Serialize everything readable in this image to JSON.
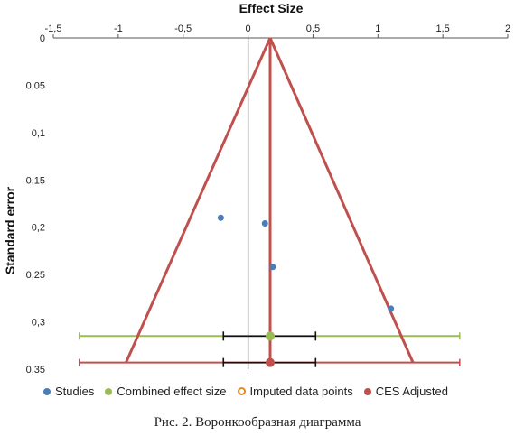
{
  "chart_data": {
    "type": "scatter",
    "title": "Effect Size",
    "xlabel": "Effect Size",
    "ylabel": "Standard error",
    "xlim": [
      -1.5,
      2
    ],
    "ylim": [
      0,
      0.35
    ],
    "y_reversed": true,
    "x_axis_position": "top",
    "x_ticks": [
      "-1,5",
      "-1",
      "-0,5",
      "0",
      "0,5",
      "1",
      "1,5",
      "2"
    ],
    "x_tick_values": [
      -1.5,
      -1,
      -0.5,
      0,
      0.5,
      1,
      1.5,
      2
    ],
    "y_ticks": [
      "0",
      "0,05",
      "0,1",
      "0,15",
      "0,2",
      "0,25",
      "0,3",
      "0,35"
    ],
    "y_tick_values": [
      0,
      0.05,
      0.1,
      0.15,
      0.2,
      0.25,
      0.3,
      0.35
    ],
    "series": [
      {
        "name": "Studies",
        "color": "#4a7ebb",
        "style": "dot",
        "points": [
          [
            -0.21,
            0.19
          ],
          [
            0.13,
            0.196
          ],
          [
            0.19,
            0.242
          ],
          [
            1.1,
            0.286
          ]
        ]
      },
      {
        "name": "Combined effect size",
        "color": "#9bbb59",
        "style": "dot",
        "points": [
          [
            0.17,
            0.315
          ]
        ]
      },
      {
        "name": "Imputed data points",
        "color": "#e08a2a",
        "style": "hollow",
        "points": []
      },
      {
        "name": "CES Adjusted",
        "color": "#c0504d",
        "style": "dot",
        "points": [
          [
            0.17,
            0.343
          ]
        ]
      }
    ],
    "funnel": {
      "color": "#c0504d",
      "apex": [
        0.17,
        0
      ],
      "base_left": [
        -0.94,
        0.343
      ],
      "base_right": [
        1.27,
        0.343
      ],
      "center_x": 0.17
    },
    "zero_line_x": 0,
    "error_bars": [
      {
        "y": 0.315,
        "center": 0.17,
        "ci": [
          -0.19,
          0.52
        ],
        "outer": [
          -1.3,
          1.63
        ],
        "outer_color": "#9bbb59"
      },
      {
        "y": 0.343,
        "center": 0.17,
        "ci": [
          -0.19,
          0.52
        ],
        "outer": [
          -1.3,
          1.63
        ],
        "outer_color": "#c0504d"
      }
    ]
  },
  "caption": "Рис. 2. Воронкообразная диаграмма"
}
